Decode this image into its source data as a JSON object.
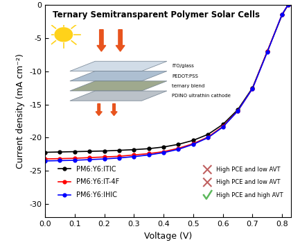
{
  "chart_data": {
    "type": "line",
    "title": "Ternary Semitransparent Polymer Solar Cells",
    "x_label": "Voltage (V)",
    "y_label": "Current density (mA cm⁻²)",
    "x": [
      0.0,
      0.05,
      0.1,
      0.15,
      0.2,
      0.25,
      0.3,
      0.35,
      0.4,
      0.45,
      0.5,
      0.55,
      0.6,
      0.65,
      0.7,
      0.75,
      0.8,
      0.82
    ],
    "series": [
      {
        "name": "PM6:Y6:ITIC",
        "color": "#000000",
        "marker": "o",
        "values": [
          -22.2,
          -22.15,
          -22.1,
          -22.05,
          -22.0,
          -21.9,
          -21.8,
          -21.65,
          -21.4,
          -21.0,
          -20.4,
          -19.5,
          -18.0,
          -15.8,
          -12.5,
          -7.0,
          -1.5,
          0
        ]
      },
      {
        "name": "PM6:Y6:IT-4F",
        "color": "#ff0000",
        "marker": "o",
        "values": [
          -23.2,
          -23.15,
          -23.1,
          -23.0,
          -22.9,
          -22.8,
          -22.6,
          -22.4,
          -22.1,
          -21.6,
          -20.9,
          -19.9,
          -18.3,
          -16.0,
          -12.6,
          -7.0,
          -1.4,
          0
        ]
      },
      {
        "name": "PM6:Y6:IHIC",
        "color": "#0000ff",
        "marker": "o",
        "values": [
          -23.5,
          -23.45,
          -23.4,
          -23.3,
          -23.2,
          -23.05,
          -22.85,
          -22.6,
          -22.25,
          -21.75,
          -21.0,
          -20.0,
          -18.4,
          -16.0,
          -12.6,
          -7.1,
          -1.4,
          0
        ]
      }
    ],
    "xlim": [
      0.0,
      0.83
    ],
    "ylim": [
      -32,
      0
    ],
    "xticks": [
      {
        "value": 0.0,
        "label": "0.0"
      },
      {
        "value": 0.1,
        "label": "0.1"
      },
      {
        "value": 0.2,
        "label": "0.2"
      },
      {
        "value": 0.3,
        "label": "0.3"
      },
      {
        "value": 0.4,
        "label": "0.4"
      },
      {
        "value": 0.5,
        "label": "0.5"
      },
      {
        "value": 0.6,
        "label": "0.6"
      },
      {
        "value": 0.7,
        "label": "0.7"
      },
      {
        "value": 0.8,
        "label": "0.8"
      }
    ],
    "yticks": [
      -30,
      -25,
      -20,
      -15,
      -10,
      -5,
      0
    ],
    "legend": "lower left",
    "annotations": [
      {
        "text": "High PCE and low AVT",
        "marker": "x"
      },
      {
        "text": "High PCE and low AVT",
        "marker": "x"
      },
      {
        "text": "High PCE and high AVT",
        "marker": "check"
      }
    ],
    "inset_layers": [
      "ITO/glass",
      "PEDOT:PSS",
      "ternary blend",
      "PDINO ultrathin cathode"
    ]
  }
}
